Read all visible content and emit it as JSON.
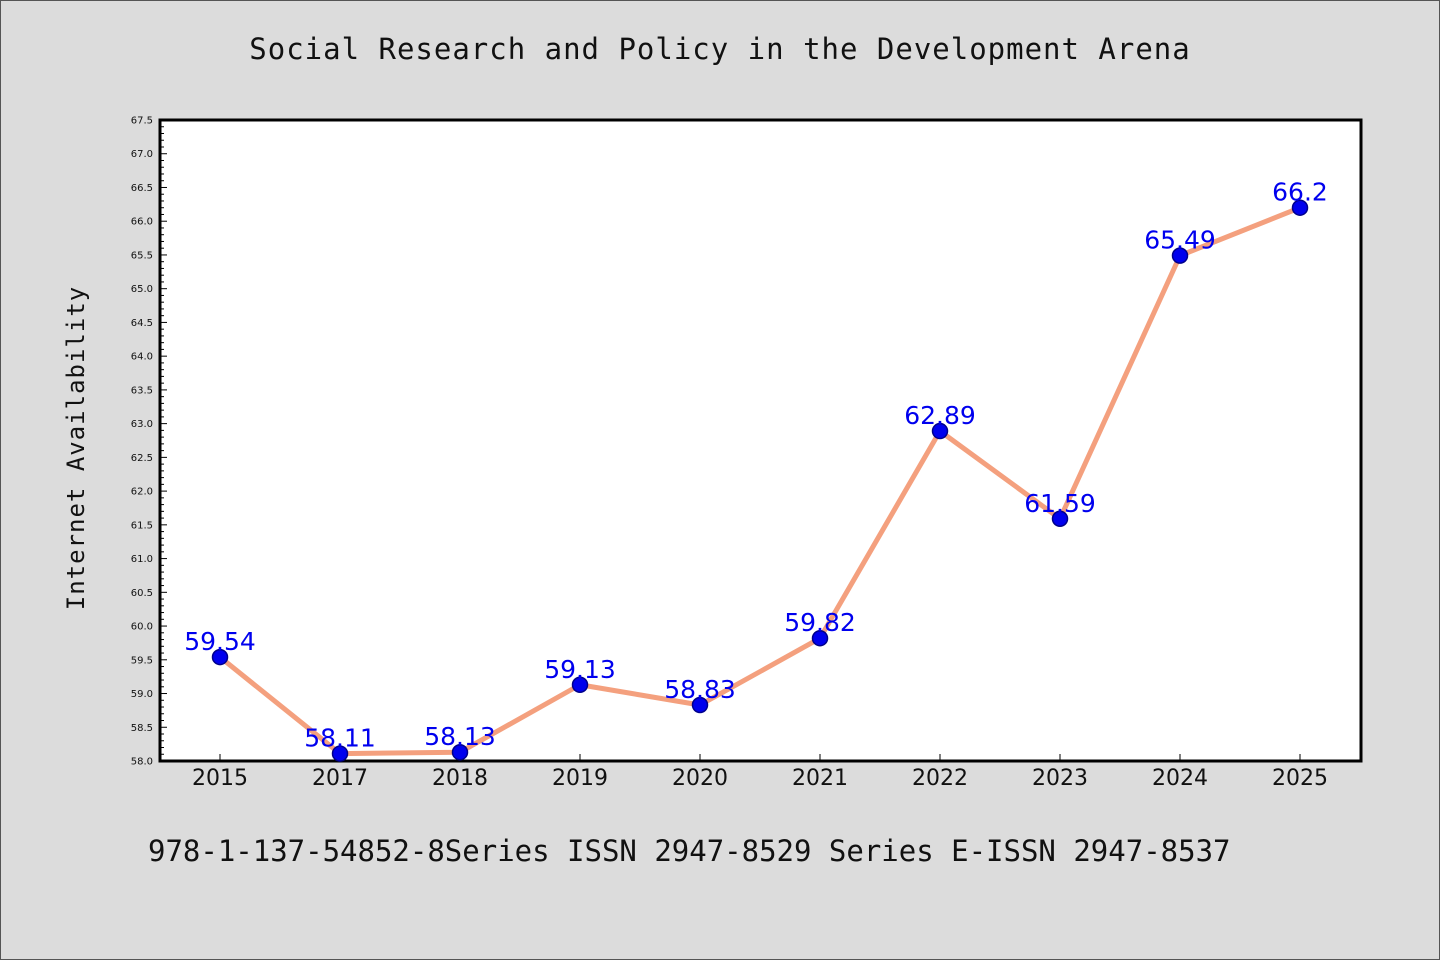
{
  "colors": {
    "background": "#dcdcdc",
    "plot_background": "#ffffff",
    "line": "#f4a07e",
    "marker_fill": "#0000ee",
    "marker_edge": "#00008b",
    "data_label": "#0000ee"
  },
  "footer_note": "978-1-137-54852-8Series ISSN 2947-8529 Series E-ISSN 2947-8537",
  "chart_data": {
    "type": "line",
    "title": "Social Research and Policy in the Development Arena",
    "xlabel": "",
    "ylabel": "Internet Availability",
    "categories": [
      "2015",
      "2017",
      "2018",
      "2019",
      "2020",
      "2021",
      "2022",
      "2023",
      "2024",
      "2025"
    ],
    "series": [
      {
        "values": [
          59.54,
          58.11,
          58.13,
          59.13,
          58.83,
          59.82,
          62.89,
          61.59,
          65.49,
          66.2
        ],
        "data_labels": [
          "59.54",
          "58.11",
          "58.13",
          "59.13",
          "58.83",
          "59.82",
          "62.89",
          "61.59",
          "65.49",
          "66.2"
        ]
      }
    ],
    "ylim": [
      58.0,
      67.5
    ],
    "yticks": [
      "58.0",
      "58.5",
      "59.0",
      "59.5",
      "60.0",
      "60.5",
      "61.0",
      "61.5",
      "62.0",
      "62.5",
      "63.0",
      "63.5",
      "64.0",
      "64.5",
      "65.0",
      "65.5",
      "66.0",
      "66.5",
      "67.0",
      "67.5"
    ],
    "grid": false,
    "legend": "none"
  }
}
